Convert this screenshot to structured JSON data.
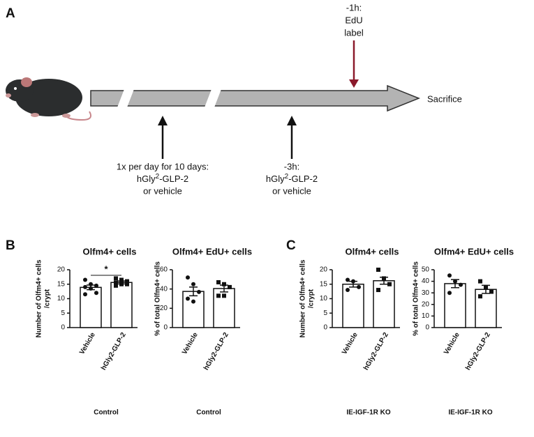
{
  "panels": {
    "a": "A",
    "b": "B",
    "c": "C"
  },
  "timeline": {
    "edu": [
      "-1h:",
      "EdU",
      "label"
    ],
    "end": "Sacrifice",
    "daily": {
      "line1": "1x per day for 10 days:",
      "drug": [
        "hGly",
        "2",
        "-GLP-2"
      ],
      "line3": "or vehicle"
    },
    "acute": {
      "line1": "-3h:",
      "drug": [
        "hGly",
        "2",
        "-GLP-2"
      ],
      "line3": "or vehicle"
    }
  },
  "chart_data": [
    {
      "type": "bar",
      "title": "Olfm4+ cells",
      "ylabel": [
        "Number of Olfm4+ cells",
        "/crypt"
      ],
      "xlabel": "Control",
      "categories": [
        "Vehicle",
        "hGly2-GLP-2"
      ],
      "values": [
        13.9,
        15.6
      ],
      "errors": [
        0.8,
        0.5
      ],
      "points": [
        [
          16.5,
          15,
          14.5,
          14,
          13.5,
          12,
          11.5
        ],
        [
          17,
          16.5,
          16,
          15.5,
          15,
          15,
          14.5
        ]
      ],
      "ylim": [
        0,
        20
      ],
      "yticks": [
        0,
        5,
        10,
        15,
        20
      ],
      "color": "#ffffff",
      "significance": "*"
    },
    {
      "type": "bar",
      "title": "Olfm4+ EdU+ cells",
      "ylabel": [
        "% of total Olfm4+ cells"
      ],
      "xlabel": "Control",
      "categories": [
        "Vehicle",
        "hGly2-GLP-2"
      ],
      "values": [
        37.5,
        40.5
      ],
      "errors": [
        4.5,
        3.5
      ],
      "points": [
        [
          52,
          45,
          37,
          30,
          27
        ],
        [
          47,
          45,
          42,
          33,
          33
        ]
      ],
      "ylim": [
        0,
        60
      ],
      "yticks": [
        0,
        20,
        40,
        60
      ],
      "color": "#ffffff"
    },
    {
      "type": "bar",
      "title": "Olfm4+ cells",
      "ylabel": [
        "Number of Olfm4+ cells",
        "/crypt"
      ],
      "xlabel": "IE-IGF-1R KO",
      "categories": [
        "Vehicle",
        "hGly2-GLP-2"
      ],
      "values": [
        15,
        16.2
      ],
      "errors": [
        1,
        1.2
      ],
      "points": [
        [
          16.5,
          16,
          14,
          13
        ],
        [
          20,
          17,
          15,
          13
        ]
      ],
      "ylim": [
        0,
        20
      ],
      "yticks": [
        0,
        5,
        10,
        15,
        20
      ],
      "color": "#ffffff"
    },
    {
      "type": "bar",
      "title": "Olfm4+ EdU+ cells",
      "ylabel": [
        "% of total Olfm4+ cells"
      ],
      "xlabel": "IE-IGF-1R KO",
      "categories": [
        "Vehicle",
        "hGly2-GLP-2"
      ],
      "values": [
        38,
        33
      ],
      "errors": [
        3.5,
        3.5
      ],
      "points": [
        [
          45,
          40,
          37,
          30
        ],
        [
          40,
          35,
          31,
          27
        ]
      ],
      "ylim": [
        0,
        50
      ],
      "yticks": [
        0,
        10,
        20,
        30,
        40,
        50
      ],
      "color": "#ffffff"
    }
  ]
}
